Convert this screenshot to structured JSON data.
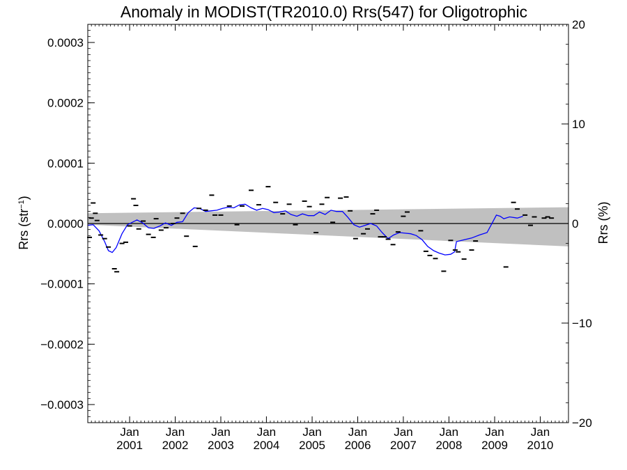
{
  "chart_data": {
    "type": "scatter",
    "title": "Anomaly in MODIST(TR2010.0) Rrs(547) for Oligotrophic",
    "ylabel_base": "Rrs (str",
    "ylabel_sup": "−1",
    "ylabel_tail": ")",
    "y2label": "Rrs (%)",
    "xlim": [
      "2000-02-01",
      "2010-08-15"
    ],
    "ylim": [
      -0.00033,
      0.00033
    ],
    "y2lim": [
      -20,
      20
    ],
    "x_tick_labels": [
      {
        "month": "Jan",
        "year": "2001",
        "date": "2001-01-01"
      },
      {
        "month": "Jan",
        "year": "2002",
        "date": "2002-01-01"
      },
      {
        "month": "Jan",
        "year": "2003",
        "date": "2003-01-01"
      },
      {
        "month": "Jan",
        "year": "2004",
        "date": "2004-01-01"
      },
      {
        "month": "Jan",
        "year": "2005",
        "date": "2005-01-01"
      },
      {
        "month": "Jan",
        "year": "2006",
        "date": "2006-01-01"
      },
      {
        "month": "Jan",
        "year": "2007",
        "date": "2007-01-01"
      },
      {
        "month": "Jan",
        "year": "2008",
        "date": "2008-01-01"
      },
      {
        "month": "Jan",
        "year": "2009",
        "date": "2009-01-01"
      },
      {
        "month": "Jan",
        "year": "2010",
        "date": "2010-01-01"
      }
    ],
    "y_ticks": [
      {
        "value": 0.0003,
        "label": "0.0003"
      },
      {
        "value": 0.0002,
        "label": "0.0002"
      },
      {
        "value": 0.0001,
        "label": "0.0001"
      },
      {
        "value": 0.0,
        "label": "0.0000"
      },
      {
        "value": -0.0001,
        "label": "−0.0001"
      },
      {
        "value": -0.0002,
        "label": "−0.0002"
      },
      {
        "value": -0.0003,
        "label": "−0.0003"
      }
    ],
    "y2_ticks": [
      {
        "value": 20,
        "label": "20"
      },
      {
        "value": 10,
        "label": "10"
      },
      {
        "value": 0,
        "label": "0"
      },
      {
        "value": -10,
        "label": "−10"
      },
      {
        "value": -20,
        "label": "−20"
      }
    ],
    "points": [
      [
        "2000-02-15",
        -2.3e-05
      ],
      [
        "2000-03-01",
        9e-06
      ],
      [
        "2000-03-15",
        3.4e-05
      ],
      [
        "2000-04-01",
        1.7e-05
      ],
      [
        "2000-04-15",
        5e-06
      ],
      [
        "2000-05-15",
        -1.9e-05
      ],
      [
        "2000-06-15",
        -2.5e-05
      ],
      [
        "2000-07-15",
        -3.9e-05
      ],
      [
        "2000-09-01",
        -7.5e-05
      ],
      [
        "2000-09-20",
        -8e-05
      ],
      [
        "2000-11-01",
        -3.3e-05
      ],
      [
        "2000-12-01",
        -3.1e-05
      ],
      [
        "2001-01-01",
        -4e-06
      ],
      [
        "2001-02-01",
        4.1e-05
      ],
      [
        "2001-02-20",
        3e-05
      ],
      [
        "2001-03-15",
        -9e-06
      ],
      [
        "2001-04-20",
        4e-06
      ],
      [
        "2001-06-01",
        -1.8e-05
      ],
      [
        "2001-07-10",
        -2.3e-05
      ],
      [
        "2001-08-01",
        8e-06
      ],
      [
        "2001-09-10",
        -1.1e-05
      ],
      [
        "2001-10-20",
        -7e-06
      ],
      [
        "2001-12-15",
        0.0
      ],
      [
        "2002-01-15",
        9e-06
      ],
      [
        "2002-03-01",
        1.7e-05
      ],
      [
        "2002-04-01",
        -2.1e-05
      ],
      [
        "2002-06-10",
        -3.8e-05
      ],
      [
        "2002-07-10",
        2.5e-05
      ],
      [
        "2002-09-01",
        2.2e-05
      ],
      [
        "2002-10-20",
        4.7e-05
      ],
      [
        "2002-11-15",
        1.4e-05
      ],
      [
        "2003-01-01",
        1.4e-05
      ],
      [
        "2003-03-10",
        2.9e-05
      ],
      [
        "2003-05-10",
        -2e-06
      ],
      [
        "2003-06-20",
        2.9e-05
      ],
      [
        "2003-09-01",
        5.5e-05
      ],
      [
        "2003-11-01",
        3.1e-05
      ],
      [
        "2004-01-15",
        6.1e-05
      ],
      [
        "2004-03-15",
        3.5e-05
      ],
      [
        "2004-05-10",
        1.6e-05
      ],
      [
        "2004-07-01",
        3.2e-05
      ],
      [
        "2004-08-20",
        -2e-06
      ],
      [
        "2004-11-01",
        3.7e-05
      ],
      [
        "2004-12-10",
        2.8e-05
      ],
      [
        "2005-02-01",
        -1.5e-05
      ],
      [
        "2005-03-20",
        3.2e-05
      ],
      [
        "2005-05-01",
        4.3e-05
      ],
      [
        "2005-06-15",
        2e-06
      ],
      [
        "2005-08-15",
        4.2e-05
      ],
      [
        "2005-10-01",
        4.4e-05
      ],
      [
        "2005-11-01",
        2.1e-05
      ],
      [
        "2005-12-15",
        -2.5e-05
      ],
      [
        "2006-02-15",
        -1.7e-05
      ],
      [
        "2006-03-20",
        -9e-06
      ],
      [
        "2006-05-01",
        1.6e-05
      ],
      [
        "2006-06-01",
        2.2e-05
      ],
      [
        "2006-07-01",
        -2.2e-05
      ],
      [
        "2006-08-01",
        -2.2e-05
      ],
      [
        "2006-09-01",
        -2.6e-05
      ],
      [
        "2006-10-10",
        -3.5e-05
      ],
      [
        "2006-11-20",
        -1.4e-05
      ],
      [
        "2007-01-01",
        1.2e-05
      ],
      [
        "2007-02-01",
        1.9e-05
      ],
      [
        "2007-05-20",
        -1.2e-05
      ],
      [
        "2007-07-01",
        -4.6e-05
      ],
      [
        "2007-08-01",
        -5.3e-05
      ],
      [
        "2007-09-15",
        -5.8e-05
      ],
      [
        "2007-11-20",
        -7.9e-05
      ],
      [
        "2008-01-15",
        -2.8e-05
      ],
      [
        "2008-02-20",
        -4.4e-05
      ],
      [
        "2008-03-15",
        -4.7e-05
      ],
      [
        "2008-05-01",
        -5.9e-05
      ],
      [
        "2008-07-01",
        -4.4e-05
      ],
      [
        "2008-08-01",
        -2.9e-05
      ],
      [
        "2009-04-01",
        -7.2e-05
      ],
      [
        "2009-06-01",
        3.5e-05
      ],
      [
        "2009-07-01",
        2.4e-05
      ],
      [
        "2009-09-01",
        1.4e-05
      ],
      [
        "2009-10-15",
        -3e-06
      ],
      [
        "2009-11-15",
        1.1e-05
      ],
      [
        "2010-02-01",
        9e-06
      ],
      [
        "2010-03-01",
        1.1e-05
      ],
      [
        "2010-04-01",
        9e-06
      ]
    ],
    "smooth_series": [
      [
        "2000-02-01",
        -3e-06
      ],
      [
        "2000-03-15",
        -2e-06
      ],
      [
        "2000-05-01",
        -1.2e-05
      ],
      [
        "2000-06-15",
        -3e-05
      ],
      [
        "2000-07-15",
        -4.5e-05
      ],
      [
        "2000-08-15",
        -4.8e-05
      ],
      [
        "2000-09-15",
        -4e-05
      ],
      [
        "2000-11-01",
        -1.7e-05
      ],
      [
        "2000-12-15",
        -2e-06
      ],
      [
        "2001-03-01",
        6e-06
      ],
      [
        "2001-04-15",
        1e-06
      ],
      [
        "2001-06-01",
        -7e-06
      ],
      [
        "2001-07-15",
        -8e-06
      ],
      [
        "2001-09-01",
        -4e-06
      ],
      [
        "2001-10-15",
        1e-06
      ],
      [
        "2001-12-01",
        -3e-06
      ],
      [
        "2002-01-15",
        2e-06
      ],
      [
        "2002-03-01",
        3e-06
      ],
      [
        "2002-04-15",
        1.8e-05
      ],
      [
        "2002-06-01",
        2.6e-05
      ],
      [
        "2002-07-15",
        2.5e-05
      ],
      [
        "2002-09-01",
        2e-05
      ],
      [
        "2002-10-15",
        2.1e-05
      ],
      [
        "2002-12-01",
        2.2e-05
      ],
      [
        "2003-01-15",
        2.5e-05
      ],
      [
        "2003-03-01",
        2.7e-05
      ],
      [
        "2003-04-15",
        2.6e-05
      ],
      [
        "2003-06-01",
        3.1e-05
      ],
      [
        "2003-07-15",
        3.2e-05
      ],
      [
        "2003-09-01",
        2.6e-05
      ],
      [
        "2003-10-15",
        2.2e-05
      ],
      [
        "2003-12-01",
        2.5e-05
      ],
      [
        "2004-01-15",
        2.3e-05
      ],
      [
        "2004-03-01",
        1.8e-05
      ],
      [
        "2004-04-15",
        1.9e-05
      ],
      [
        "2004-06-01",
        2.1e-05
      ],
      [
        "2004-07-15",
        1.5e-05
      ],
      [
        "2004-09-01",
        1.2e-05
      ],
      [
        "2004-10-15",
        1.6e-05
      ],
      [
        "2004-12-01",
        1.3e-05
      ],
      [
        "2005-01-15",
        1.3e-05
      ],
      [
        "2005-03-01",
        1.9e-05
      ],
      [
        "2005-04-15",
        1.5e-05
      ],
      [
        "2005-06-01",
        2.2e-05
      ],
      [
        "2005-07-15",
        2e-05
      ],
      [
        "2005-09-01",
        2e-05
      ],
      [
        "2005-10-15",
        1e-05
      ],
      [
        "2005-12-01",
        -2e-06
      ],
      [
        "2006-01-15",
        -6e-06
      ],
      [
        "2006-03-01",
        -3e-06
      ],
      [
        "2006-04-15",
        0.0
      ],
      [
        "2006-06-01",
        -4e-06
      ],
      [
        "2006-07-15",
        -1.5e-05
      ],
      [
        "2006-09-01",
        -2.5e-05
      ],
      [
        "2006-10-15",
        -1.9e-05
      ],
      [
        "2006-12-01",
        -1.5e-05
      ],
      [
        "2007-01-15",
        -1.6e-05
      ],
      [
        "2007-03-01",
        -1.7e-05
      ],
      [
        "2007-04-15",
        -2e-05
      ],
      [
        "2007-06-01",
        -2.7e-05
      ],
      [
        "2007-07-15",
        -3.8e-05
      ],
      [
        "2007-09-01",
        -4.5e-05
      ],
      [
        "2007-10-15",
        -4.9e-05
      ],
      [
        "2007-12-01",
        -5.2e-05
      ],
      [
        "2008-01-15",
        -5.1e-05
      ],
      [
        "2008-02-15",
        -4.7e-05
      ],
      [
        "2008-03-01",
        -3e-05
      ],
      [
        "2008-05-01",
        -2.7e-05
      ],
      [
        "2008-07-01",
        -2.4e-05
      ],
      [
        "2008-09-01",
        -1.9e-05
      ],
      [
        "2008-11-01",
        -1.5e-05
      ],
      [
        "2008-12-15",
        2e-06
      ],
      [
        "2009-01-15",
        1.4e-05
      ],
      [
        "2009-02-15",
        1.2e-05
      ],
      [
        "2009-03-15",
        8e-06
      ],
      [
        "2009-05-01",
        1.1e-05
      ],
      [
        "2009-07-01",
        9e-06
      ],
      [
        "2009-08-15",
        1.2e-05
      ]
    ],
    "regression_band": {
      "upper": [
        [
          "2000-02-01",
          1.7e-05
        ],
        [
          "2010-08-15",
          2.7e-05
        ]
      ],
      "lower": [
        [
          "2000-02-01",
          -2e-06
        ],
        [
          "2010-08-15",
          -3.8e-05
        ]
      ]
    },
    "zero_line": 0,
    "colors": {
      "smooth": "#0000ff",
      "band": "#c0c0c0",
      "points": "#000000",
      "axes": "#000000"
    }
  }
}
